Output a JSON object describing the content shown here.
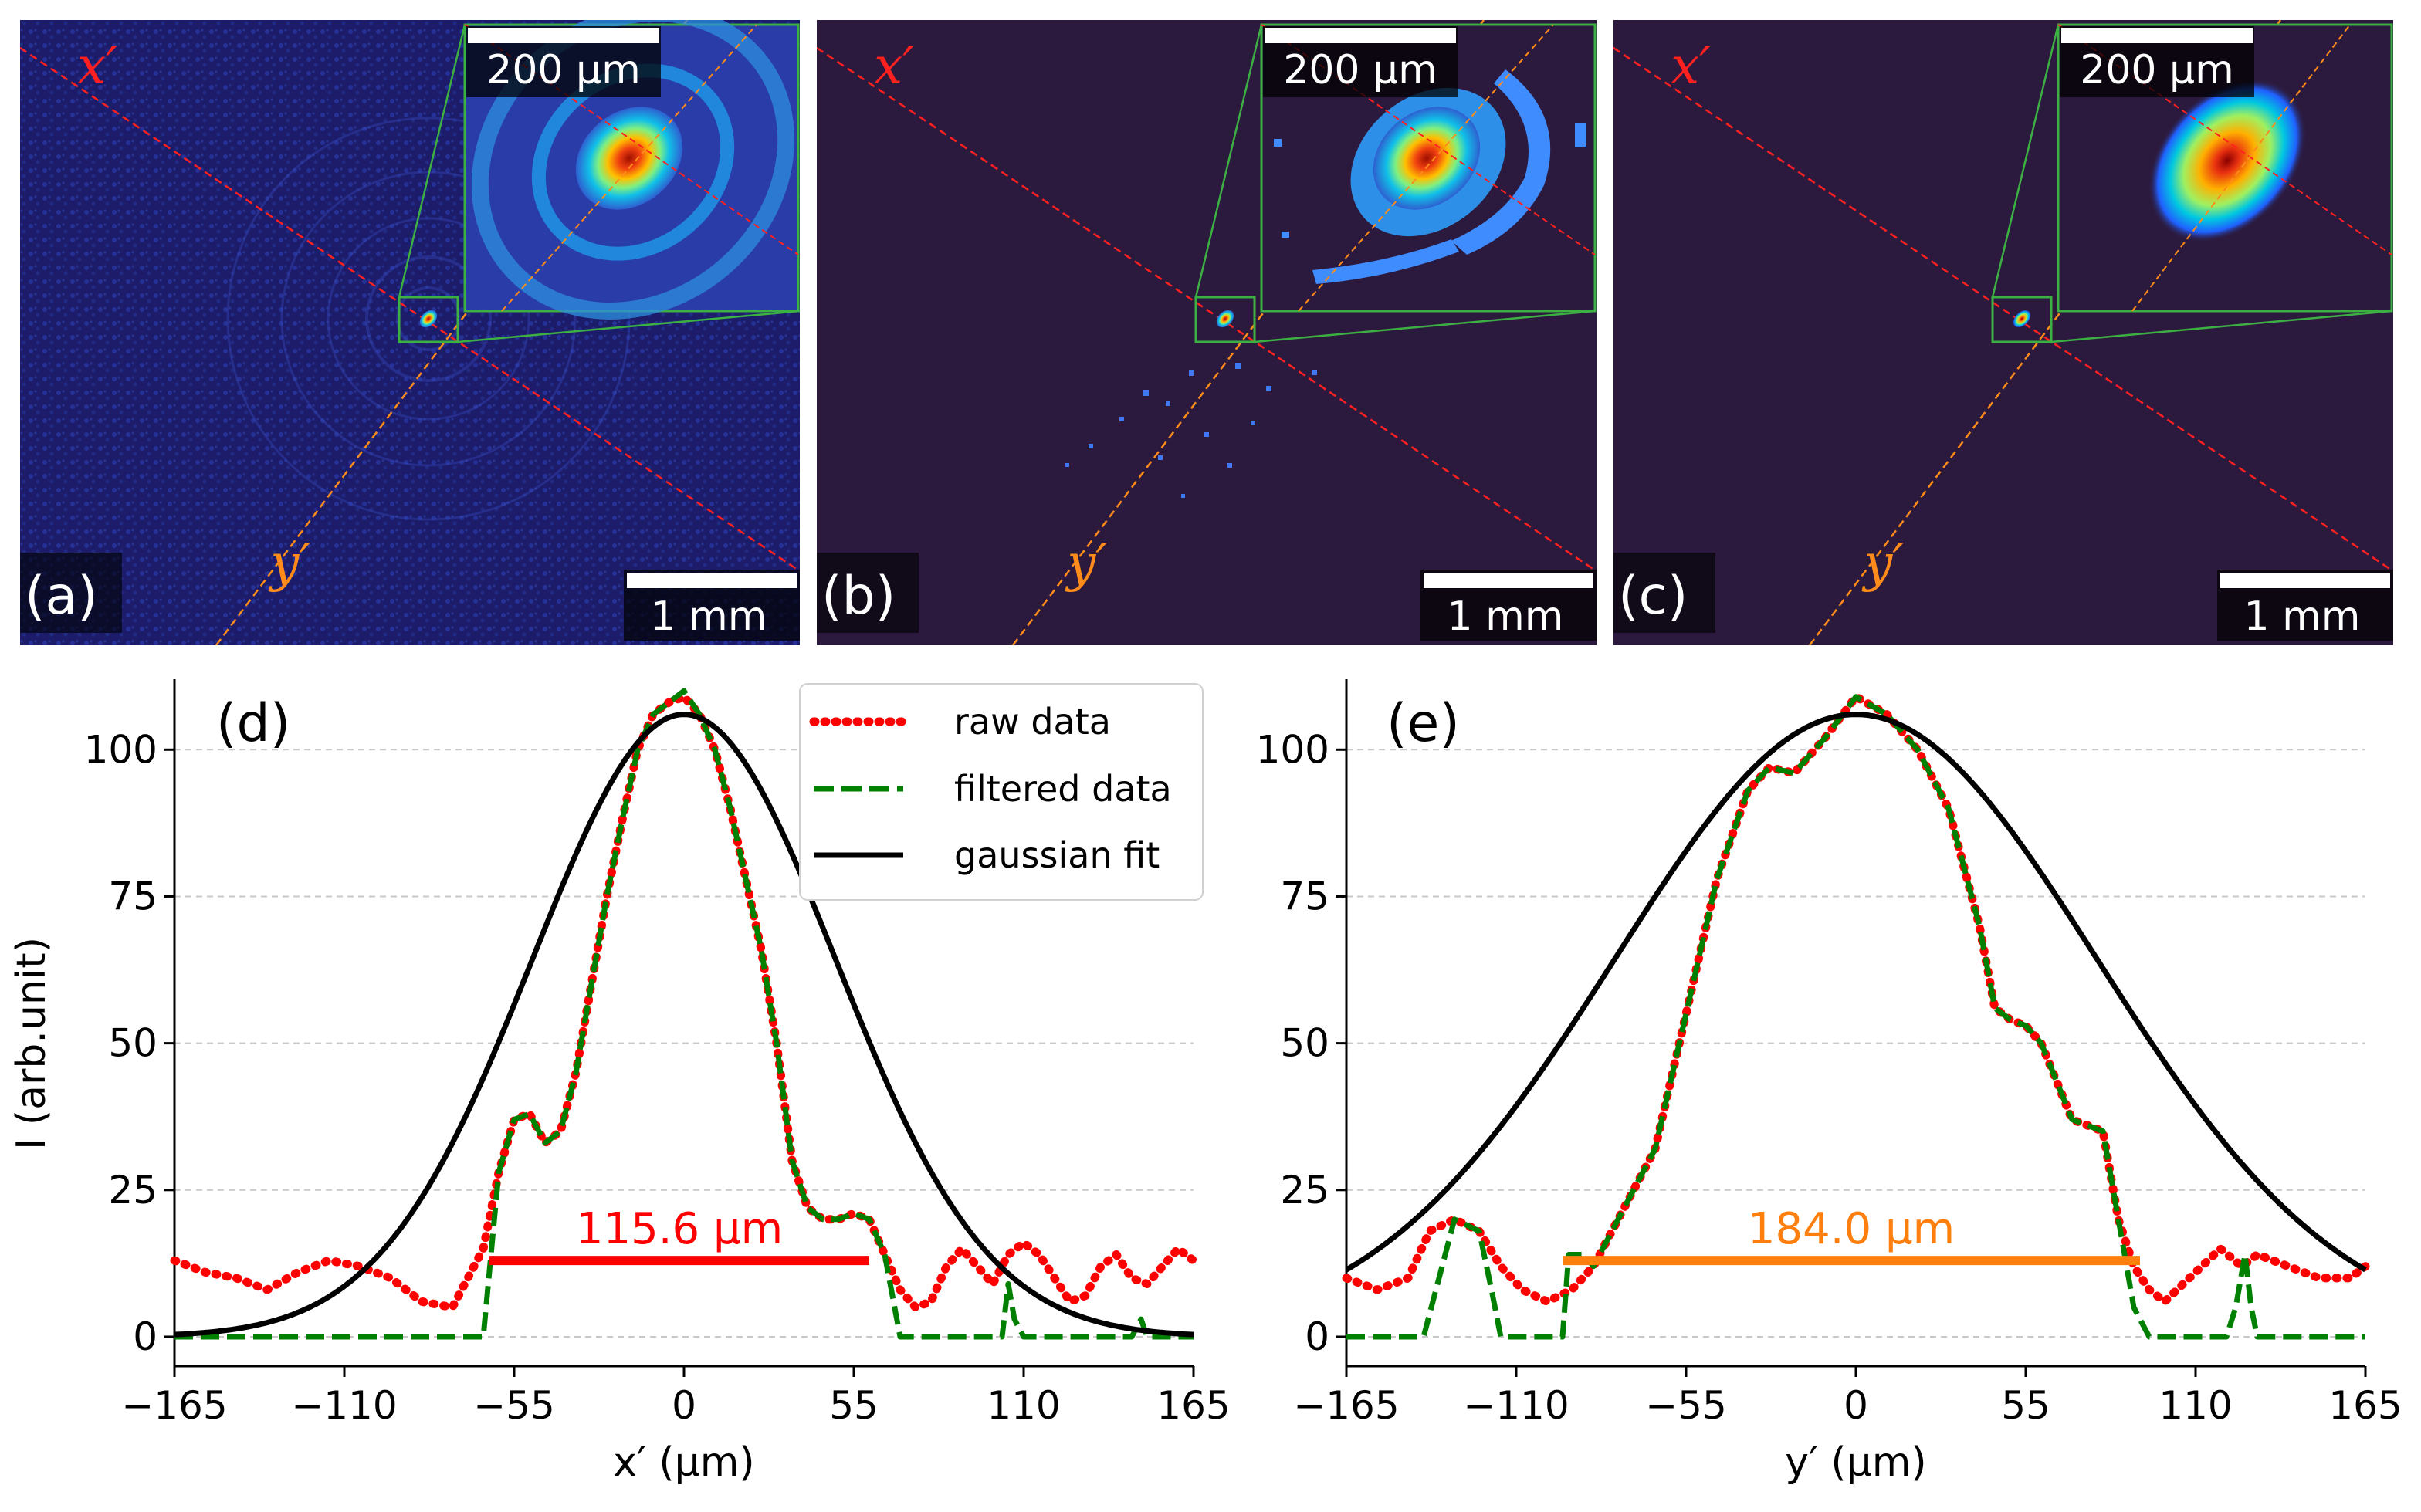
{
  "figure": {
    "panels": [
      {
        "letter": "(a)",
        "style": "raw",
        "x_label": "x′",
        "y_label": "y′",
        "scale_main": "1 mm",
        "scale_inset": "200 μm"
      },
      {
        "letter": "(b)",
        "style": "filtered",
        "x_label": "x′",
        "y_label": "y′",
        "scale_main": "1 mm",
        "scale_inset": "200 μm"
      },
      {
        "letter": "(c)",
        "style": "fit",
        "x_label": "x′",
        "y_label": "y′",
        "scale_main": "1 mm",
        "scale_inset": "200 μm"
      }
    ],
    "colors": {
      "background_dark": "#2c1a3e",
      "raw_line": "#ff0000",
      "filtered_line": "#008000",
      "fit_line": "#000000",
      "x_axis_color": "#ff0000",
      "y_axis_color": "#ff8c1a",
      "inset_frame": "#3cb043"
    }
  },
  "chart_data": [
    {
      "type": "line",
      "panel_letter": "(d)",
      "title": "",
      "xlabel": "x′ (μm)",
      "ylabel": "I (arb.unit)",
      "xlim": [
        -165,
        165
      ],
      "ylim": [
        -5,
        112
      ],
      "xticks": [
        -165,
        -110,
        -55,
        0,
        55,
        110,
        165
      ],
      "xtick_labels": [
        "−165",
        "−110",
        "−55",
        "0",
        "55",
        "110",
        "165"
      ],
      "yticks": [
        0,
        25,
        50,
        75,
        100
      ],
      "ytick_labels": [
        "0",
        "25",
        "50",
        "75",
        "100"
      ],
      "grid": "horizontal dashed",
      "legend": {
        "placement": "top-right",
        "entries": [
          "raw data",
          "filtered data",
          "gaussian fit"
        ]
      },
      "fwhm": {
        "label": "115.6 μm",
        "x_start": -63,
        "x_end": 60,
        "y": 13,
        "color": "#ff0000"
      },
      "series": [
        {
          "name": "raw data",
          "style": "dotted",
          "color": "#ff0000",
          "x": [
            -165,
            -155,
            -145,
            -135,
            -125,
            -115,
            -105,
            -95,
            -85,
            -75,
            -65,
            -60,
            -55,
            -50,
            -45,
            -40,
            -35,
            -30,
            -25,
            -20,
            -15,
            -10,
            -5,
            0,
            5,
            10,
            15,
            20,
            25,
            30,
            35,
            40,
            45,
            50,
            55,
            60,
            65,
            70,
            75,
            80,
            85,
            90,
            95,
            100,
            105,
            110,
            115,
            120,
            125,
            130,
            135,
            140,
            145,
            150,
            155,
            160,
            165
          ],
          "y": [
            13,
            11,
            10,
            8,
            11,
            13,
            12,
            10,
            6,
            5,
            15,
            28,
            37,
            38,
            33,
            35,
            45,
            60,
            75,
            88,
            100,
            106,
            108,
            109,
            106,
            100,
            90,
            78,
            66,
            50,
            30,
            22,
            20,
            20,
            21,
            20,
            14,
            8,
            5,
            6,
            12,
            15,
            12,
            9,
            14,
            16,
            14,
            10,
            6,
            7,
            12,
            14,
            10,
            9,
            12,
            15,
            13
          ]
        },
        {
          "name": "filtered data",
          "style": "dashed",
          "color": "#008000",
          "x": [
            -165,
            -155,
            -145,
            -135,
            -125,
            -115,
            -105,
            -95,
            -85,
            -75,
            -70,
            -65,
            -60,
            -55,
            -50,
            -45,
            -40,
            -35,
            -30,
            -25,
            -20,
            -15,
            -10,
            -5,
            0,
            5,
            10,
            15,
            20,
            25,
            30,
            35,
            40,
            45,
            50,
            55,
            60,
            65,
            70,
            72,
            75,
            80,
            85,
            90,
            95,
            100,
            103,
            105,
            107,
            110,
            115,
            120,
            125,
            130,
            135,
            140,
            145,
            148,
            150,
            155,
            160,
            165
          ],
          "y": [
            0,
            0,
            0,
            0,
            0,
            0,
            0,
            0,
            0,
            0,
            0,
            0,
            28,
            37,
            38,
            33,
            35,
            45,
            60,
            75,
            88,
            100,
            106,
            108,
            110,
            106,
            100,
            90,
            78,
            66,
            50,
            30,
            22,
            20,
            20,
            21,
            20,
            14,
            0,
            0,
            0,
            0,
            0,
            0,
            0,
            0,
            0,
            9,
            3,
            0,
            0,
            0,
            0,
            0,
            0,
            0,
            0,
            3,
            0,
            0,
            0,
            0
          ]
        },
        {
          "name": "gaussian fit",
          "style": "solid",
          "color": "#000000",
          "function": "gaussian",
          "amplitude": 106,
          "center": 0,
          "fwhm": 115.6
        }
      ]
    },
    {
      "type": "line",
      "panel_letter": "(e)",
      "title": "",
      "xlabel": "y′ (μm)",
      "ylabel": "",
      "xlim": [
        -165,
        165
      ],
      "ylim": [
        -5,
        112
      ],
      "xticks": [
        -165,
        -110,
        -55,
        0,
        55,
        110,
        165
      ],
      "xtick_labels": [
        "−165",
        "−110",
        "−55",
        "0",
        "55",
        "110",
        "165"
      ],
      "yticks": [
        0,
        25,
        50,
        75,
        100
      ],
      "ytick_labels": [
        "0",
        "25",
        "50",
        "75",
        "100"
      ],
      "grid": "horizontal dashed",
      "fwhm": {
        "label": "184.0 μm",
        "x_start": -95,
        "x_end": 92,
        "y": 13,
        "color": "#ff7f0e"
      },
      "series": [
        {
          "name": "raw data",
          "style": "dotted",
          "color": "#ff0000",
          "x": [
            -165,
            -155,
            -145,
            -138,
            -130,
            -122,
            -115,
            -108,
            -100,
            -92,
            -85,
            -75,
            -65,
            -55,
            -45,
            -35,
            -28,
            -20,
            -10,
            0,
            10,
            20,
            30,
            40,
            45,
            50,
            55,
            60,
            70,
            80,
            85,
            90,
            95,
            100,
            110,
            118,
            125,
            130,
            140,
            150,
            160,
            165
          ],
          "y": [
            10,
            8,
            10,
            18,
            20,
            18,
            12,
            8,
            6,
            8,
            12,
            22,
            32,
            55,
            78,
            93,
            97,
            96,
            102,
            109,
            106,
            100,
            90,
            70,
            56,
            54,
            53,
            50,
            37,
            35,
            20,
            12,
            8,
            6,
            11,
            15,
            12,
            14,
            12,
            10,
            10,
            12
          ]
        },
        {
          "name": "filtered data",
          "style": "dashed",
          "color": "#008000",
          "x": [
            -165,
            -155,
            -145,
            -140,
            -135,
            -130,
            -122,
            -118,
            -115,
            -110,
            -100,
            -95,
            -93,
            -88,
            -85,
            -75,
            -65,
            -55,
            -45,
            -35,
            -28,
            -20,
            -10,
            0,
            10,
            20,
            30,
            40,
            45,
            50,
            55,
            60,
            70,
            80,
            85,
            90,
            95,
            100,
            110,
            118,
            120,
            123,
            126,
            128,
            130,
            140,
            150,
            165
          ],
          "y": [
            0,
            0,
            0,
            0,
            10,
            20,
            18,
            8,
            0,
            0,
            0,
            0,
            14,
            14,
            12,
            22,
            32,
            55,
            78,
            93,
            97,
            96,
            102,
            109,
            106,
            100,
            90,
            70,
            56,
            54,
            53,
            50,
            37,
            35,
            20,
            5,
            0,
            0,
            0,
            0,
            0,
            5,
            14,
            5,
            0,
            0,
            0,
            0
          ]
        },
        {
          "name": "gaussian fit",
          "style": "solid",
          "color": "#000000",
          "function": "gaussian",
          "amplitude": 106,
          "center": 0,
          "fwhm": 184.0
        }
      ]
    }
  ]
}
